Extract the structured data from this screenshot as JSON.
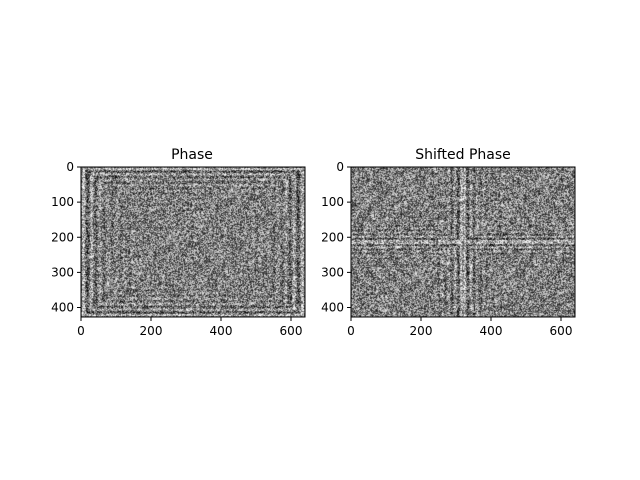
{
  "chart_data": [
    {
      "type": "heatmap",
      "title": "Phase",
      "xlabel": "",
      "ylabel": "",
      "colormap": "gray",
      "texture": "phase-ring",
      "xlim": [
        0,
        640
      ],
      "ylim": [
        427,
        0
      ],
      "xticks": [
        0,
        200,
        400,
        600
      ],
      "yticks": [
        0,
        100,
        200,
        300,
        400
      ],
      "xtick_labels": [
        "0",
        "200",
        "400",
        "600"
      ],
      "ytick_labels": [
        "0",
        "100",
        "200",
        "300",
        "400"
      ]
    },
    {
      "type": "heatmap",
      "title": "Shifted Phase",
      "xlabel": "",
      "ylabel": "",
      "colormap": "gray",
      "texture": "phase-cross",
      "xlim": [
        0,
        640
      ],
      "ylim": [
        427,
        0
      ],
      "xticks": [
        0,
        200,
        400,
        600
      ],
      "yticks": [
        0,
        100,
        200,
        300,
        400
      ],
      "xtick_labels": [
        "0",
        "200",
        "400",
        "600"
      ],
      "ytick_labels": [
        "0",
        "100",
        "200",
        "300",
        "400"
      ]
    }
  ]
}
